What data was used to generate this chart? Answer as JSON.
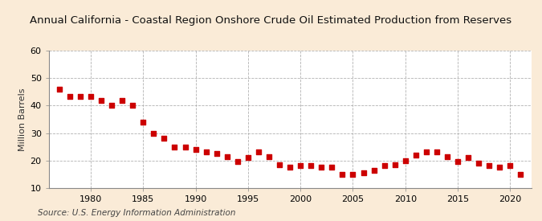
{
  "title": "Annual California - Coastal Region Onshore Crude Oil Estimated Production from Reserves",
  "ylabel": "Million Barrels",
  "source": "Source: U.S. Energy Information Administration",
  "background_color": "#faebd7",
  "plot_background_color": "#ffffff",
  "marker_color": "#cc0000",
  "grid_color": "#aaaaaa",
  "title_fontsize": 9.5,
  "label_fontsize": 8,
  "tick_fontsize": 8,
  "source_fontsize": 7.5,
  "years": [
    1977,
    1978,
    1979,
    1980,
    1981,
    1982,
    1983,
    1984,
    1985,
    1986,
    1987,
    1988,
    1989,
    1990,
    1991,
    1992,
    1993,
    1994,
    1995,
    1996,
    1997,
    1998,
    1999,
    2000,
    2001,
    2002,
    2003,
    2004,
    2005,
    2006,
    2007,
    2008,
    2009,
    2010,
    2011,
    2012,
    2013,
    2014,
    2015,
    2016,
    2017,
    2018,
    2019,
    2020,
    2021
  ],
  "values": [
    46.0,
    43.5,
    43.5,
    43.5,
    42.0,
    40.0,
    42.0,
    40.0,
    34.0,
    30.0,
    28.0,
    25.0,
    25.0,
    24.0,
    23.0,
    22.5,
    21.5,
    19.5,
    21.0,
    23.0,
    21.5,
    18.5,
    17.5,
    18.0,
    18.0,
    17.5,
    17.5,
    15.0,
    15.0,
    15.5,
    16.5,
    18.0,
    18.5,
    20.0,
    22.0,
    23.0,
    23.0,
    21.5,
    19.5,
    21.0,
    19.0,
    18.0,
    17.5,
    18.0,
    15.0
  ],
  "xlim": [
    1976,
    2022
  ],
  "ylim": [
    10,
    60
  ],
  "yticks": [
    10,
    20,
    30,
    40,
    50,
    60
  ],
  "xticks": [
    1980,
    1985,
    1990,
    1995,
    2000,
    2005,
    2010,
    2015,
    2020
  ]
}
